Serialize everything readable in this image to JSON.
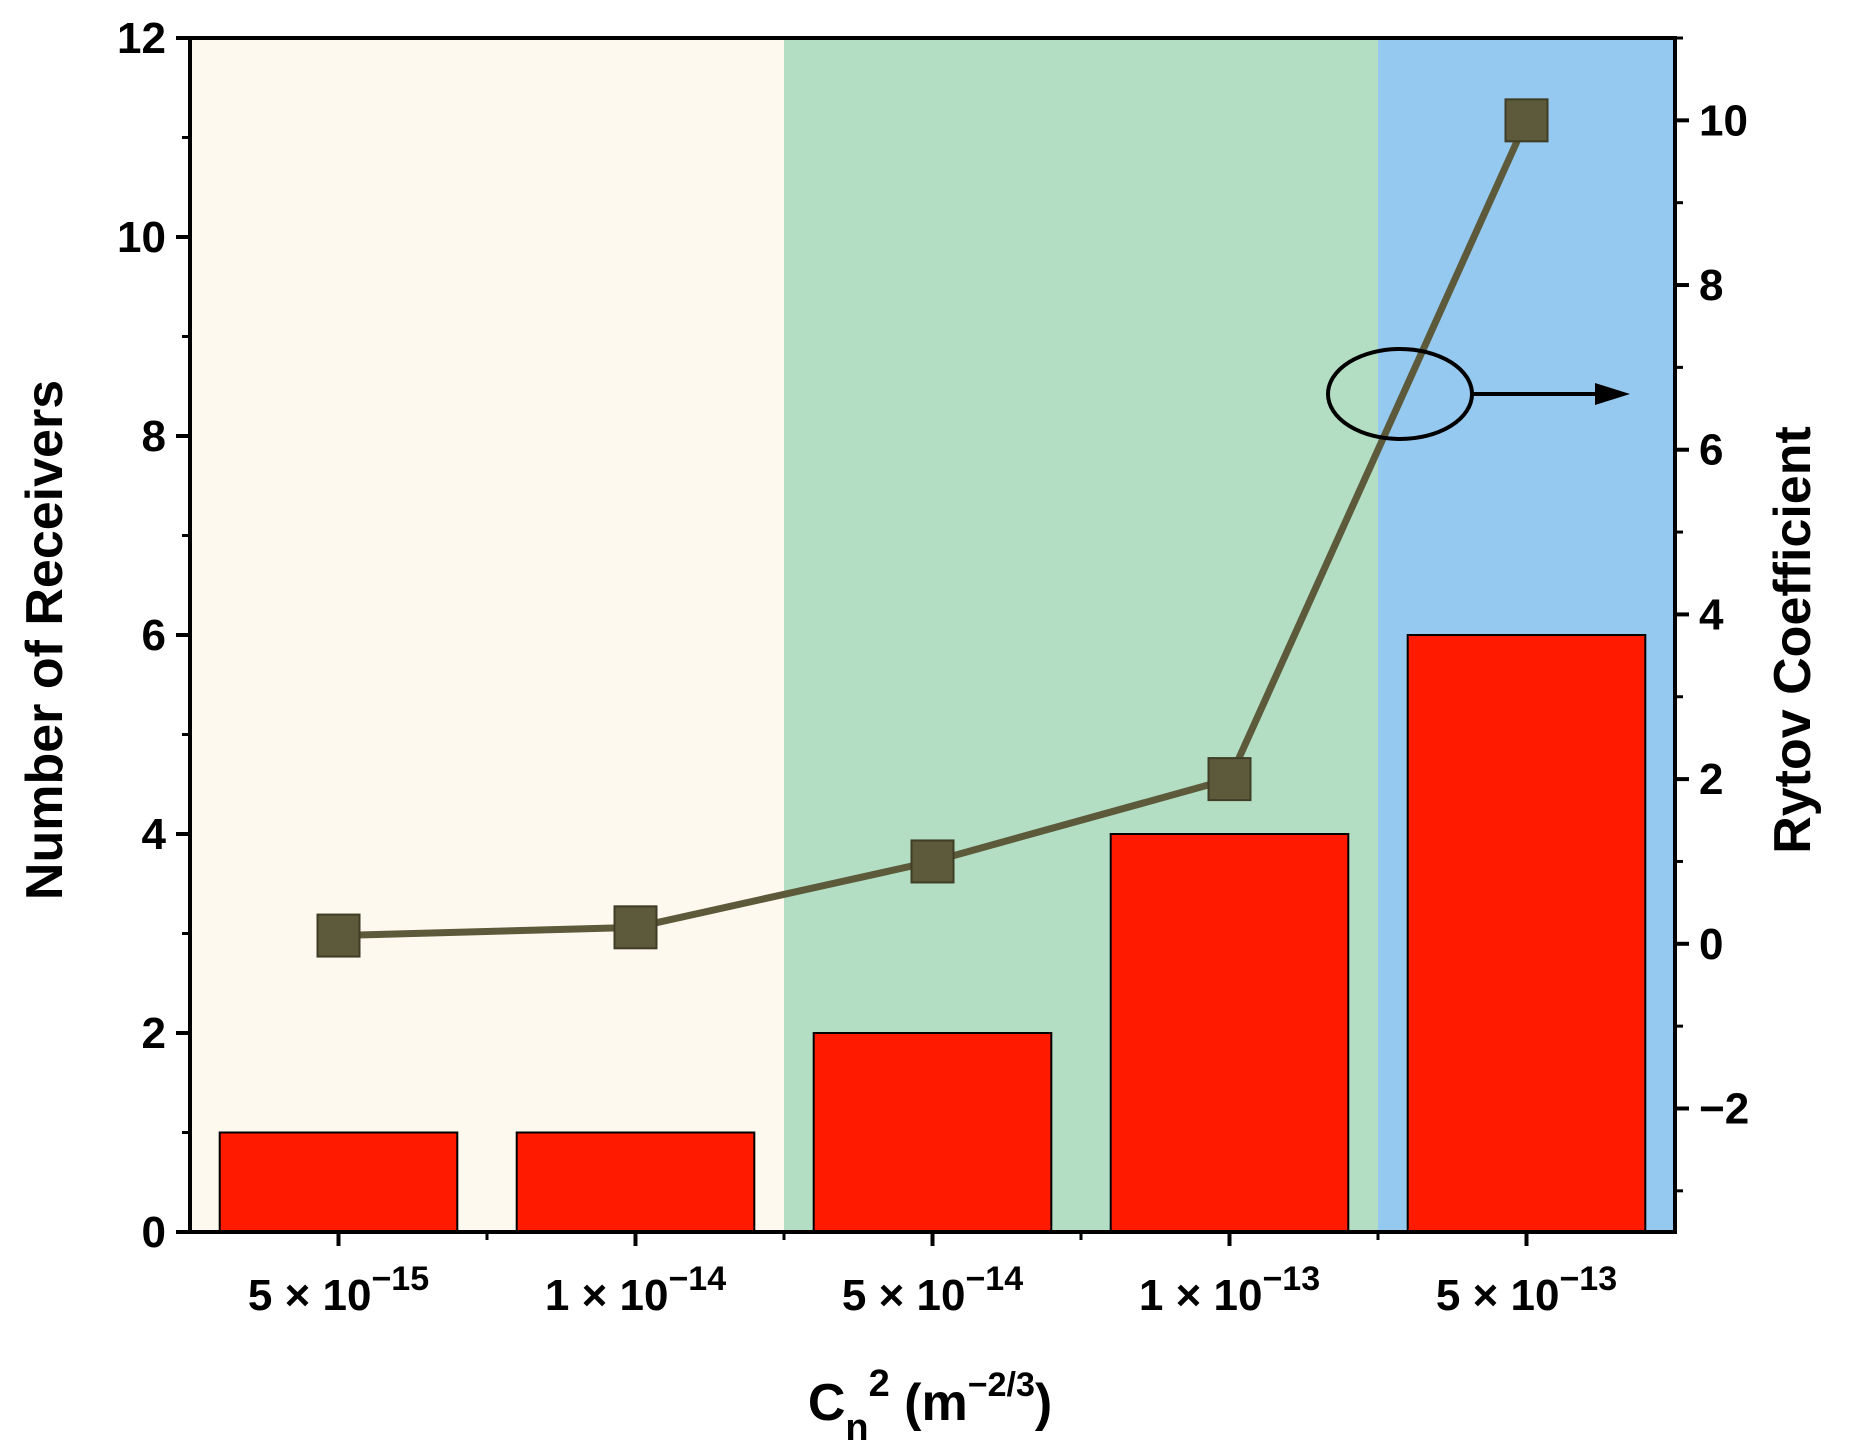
{
  "chart_data": {
    "type": "bar",
    "categories": [
      {
        "mantissa": "5",
        "times": "×",
        "base": "10",
        "exponent": "−15"
      },
      {
        "mantissa": "1",
        "times": "×",
        "base": "10",
        "exponent": "−14"
      },
      {
        "mantissa": "5",
        "times": "×",
        "base": "10",
        "exponent": "−14"
      },
      {
        "mantissa": "1",
        "times": "×",
        "base": "10",
        "exponent": "−13"
      },
      {
        "mantissa": "5",
        "times": "×",
        "base": "10",
        "exponent": "−13"
      }
    ],
    "series": [
      {
        "type": "bar",
        "axis": "left",
        "values": [
          1,
          1,
          2,
          4,
          6
        ],
        "color": "#ff1a00"
      },
      {
        "type": "line",
        "axis": "right",
        "marker": "square",
        "values": [
          0.1,
          0.2,
          1.0,
          2.0,
          10.0
        ],
        "color": "#5c5a3a"
      }
    ],
    "xlabel": {
      "main": "C",
      "sub": "n",
      "sup": "2",
      "unit_open": " (m",
      "unit_sup": "−2/3",
      "unit_close": ")"
    },
    "ylabel_left": "Number of Receivers",
    "ylabel_right": "Rytov Coefficient",
    "ylim_left": [
      0,
      12
    ],
    "ylim_right": [
      -3.5,
      11
    ],
    "yticks_left": [
      "0",
      "2",
      "4",
      "6",
      "8",
      "10",
      "12"
    ],
    "yticks_left_values": [
      0,
      2,
      4,
      6,
      8,
      10,
      12
    ],
    "yticks_right": [
      "−2",
      "0",
      "2",
      "4",
      "6",
      "8",
      "10"
    ],
    "yticks_right_values": [
      -2,
      0,
      2,
      4,
      6,
      8,
      10
    ],
    "regions": [
      {
        "from_category": 0,
        "to_category": 1.5,
        "color": "#fdf9ee"
      },
      {
        "from_category": 1.5,
        "to_category": 3.5,
        "color": "#b3dec4"
      },
      {
        "from_category": 3.5,
        "to_category": 4.5,
        "color": "#96c9ef"
      }
    ],
    "annotation": {
      "type": "ellipse-arrow",
      "points_to": "right axis"
    },
    "grid": false
  }
}
